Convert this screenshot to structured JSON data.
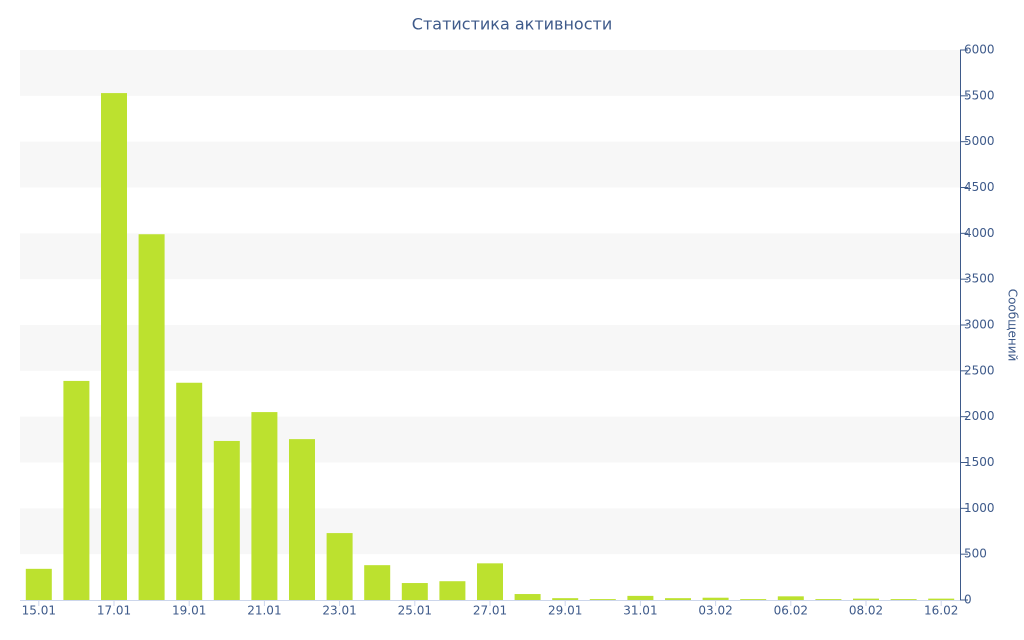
{
  "chart_data": {
    "type": "bar",
    "title": "Статистика активности",
    "y_label": "Сообщений",
    "color": "#bce12f",
    "categories": [
      "15.01",
      null,
      "17.01",
      null,
      "19.01",
      null,
      "21.01",
      null,
      "23.01",
      null,
      "25.01",
      null,
      "27.01",
      null,
      "29.01",
      null,
      "31.01",
      null,
      "03.02",
      null,
      "06.02",
      null,
      "08.02",
      null,
      "16.02"
    ],
    "values": [
      340,
      2390,
      5530,
      3990,
      2370,
      1735,
      2050,
      1755,
      730,
      380,
      185,
      205,
      400,
      65,
      20,
      10,
      45,
      20,
      25,
      10,
      40,
      10,
      15,
      10,
      15
    ],
    "ylim": [
      0,
      6000
    ],
    "yticks": [
      0,
      500,
      1000,
      1500,
      2000,
      2500,
      3000,
      3500,
      4000,
      4500,
      5000,
      5500,
      6000
    ],
    "y_axis_side": "right",
    "grid": "bands"
  }
}
